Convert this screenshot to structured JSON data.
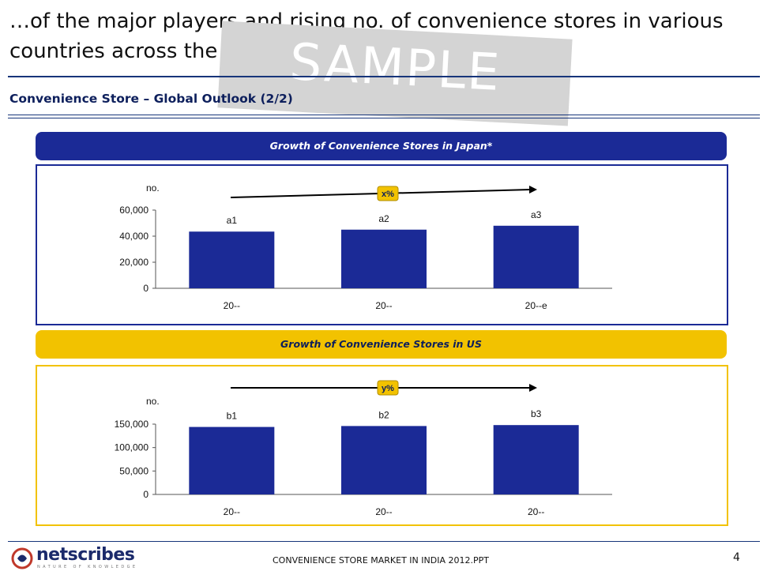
{
  "slide": {
    "title": "…of the major players and rising no. of convenience stores in various countries across the globe",
    "watermark": "SAMPLE",
    "subtitle": "Convenience Store – Global Outlook (2/2)",
    "page_number": "4"
  },
  "footer": {
    "logo_text": "netscribes",
    "logo_tagline": "NATURE OF KNOWLEDGE",
    "document": "CONVENIENCE STORE MARKET IN INDIA 2012.PPT"
  },
  "colors": {
    "navy": "#1b2a96",
    "yellow": "#f2c200",
    "bar": "#1b2a96"
  },
  "banners": {
    "japan": "Growth of Convenience Stores in Japan*",
    "us": "Growth of Convenience Stores in US"
  },
  "chart_data": [
    {
      "type": "bar",
      "title": "Growth of Convenience Stores in Japan*",
      "ylabel": "no.",
      "categories": [
        "20--",
        "20--",
        "20--e"
      ],
      "values": [
        43500,
        45000,
        48000
      ],
      "data_labels": [
        "a1",
        "a2",
        "a3"
      ],
      "ylim": [
        0,
        60000
      ],
      "yticks": [
        0,
        20000,
        40000,
        60000
      ],
      "ytick_labels": [
        "0",
        "20,000",
        "40,000",
        "60,000"
      ],
      "growth_label": "x%",
      "grid": false
    },
    {
      "type": "bar",
      "title": "Growth of Convenience Stores in US",
      "ylabel": "no.",
      "categories": [
        "20--",
        "20--",
        "20--"
      ],
      "values": [
        144000,
        146000,
        148000
      ],
      "data_labels": [
        "b1",
        "b2",
        "b3"
      ],
      "ylim": [
        0,
        150000
      ],
      "yticks": [
        0,
        50000,
        100000,
        150000
      ],
      "ytick_labels": [
        "0",
        "50,000",
        "100,000",
        "150,000"
      ],
      "growth_label": "y%",
      "grid": false
    }
  ]
}
